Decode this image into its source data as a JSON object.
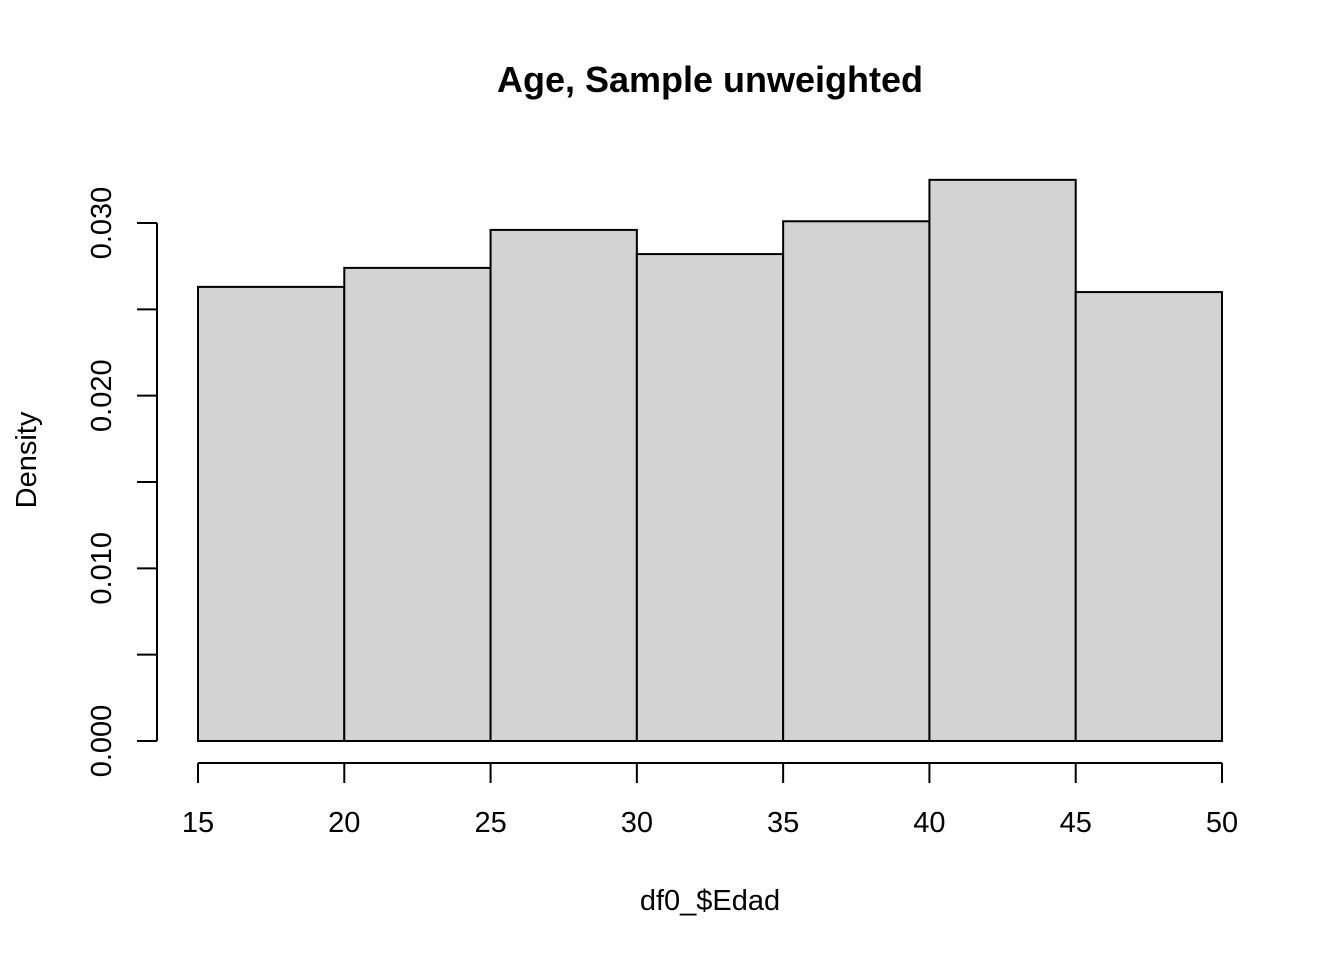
{
  "chart_data": {
    "type": "bar",
    "title": "Age, Sample unweighted",
    "xlabel": "df0_$Edad",
    "ylabel": "Density",
    "bins": [
      {
        "start": 15,
        "end": 20,
        "density": 0.0263
      },
      {
        "start": 20,
        "end": 25,
        "density": 0.0274
      },
      {
        "start": 25,
        "end": 30,
        "density": 0.0296
      },
      {
        "start": 30,
        "end": 35,
        "density": 0.0282
      },
      {
        "start": 35,
        "end": 40,
        "density": 0.0301
      },
      {
        "start": 40,
        "end": 45,
        "density": 0.0325
      },
      {
        "start": 45,
        "end": 50,
        "density": 0.026
      }
    ],
    "x_ticks": [
      "15",
      "20",
      "25",
      "30",
      "35",
      "40",
      "45",
      "50"
    ],
    "y_ticks": [
      0,
      0.005,
      0.01,
      0.015,
      0.02,
      0.025,
      0.03
    ],
    "y_tick_labels": [
      "0.000",
      "0.010",
      "0.020",
      "0.030"
    ],
    "xlim": [
      15,
      50
    ],
    "ylim": [
      0,
      0.03
    ],
    "bar_color": "#d3d3d3",
    "grid": false
  }
}
